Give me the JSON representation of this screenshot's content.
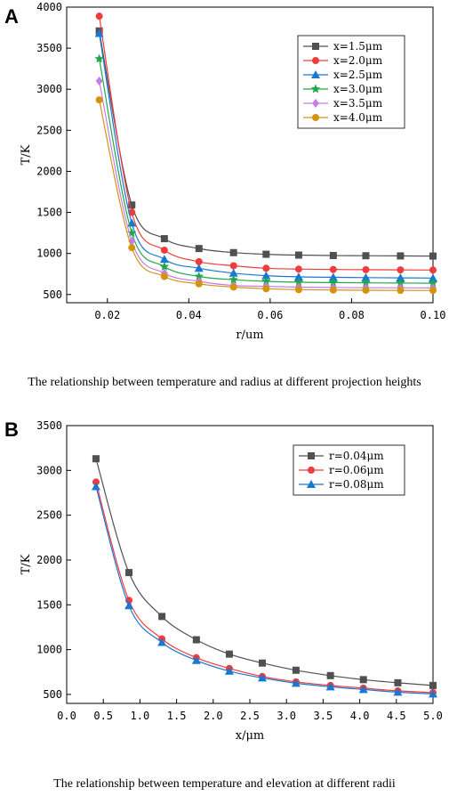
{
  "panels": [
    {
      "letter": "A",
      "caption": "The relationship between temperature and radius at different projection heights"
    },
    {
      "letter": "B",
      "caption": "The relationship between temperature and elevation at different radii"
    }
  ],
  "chart_data": [
    {
      "type": "line",
      "title": "",
      "xlabel": "r/um",
      "ylabel": "T/K",
      "xlim": [
        0.01,
        0.1
      ],
      "ylim": [
        400,
        4000
      ],
      "xticks": [
        0.02,
        0.04,
        0.06,
        0.08,
        0.1
      ],
      "xtick_labels": [
        "0.02",
        "0.04",
        "0.06",
        "0.08",
        "0.10"
      ],
      "yticks": [
        500,
        1000,
        1500,
        2000,
        2500,
        3000,
        3500,
        4000
      ],
      "ytick_labels": [
        "500",
        "1000",
        "1500",
        "2000",
        "2500",
        "3000",
        "3500",
        "4000"
      ],
      "x": [
        0.018,
        0.026,
        0.034,
        0.0425,
        0.051,
        0.059,
        0.067,
        0.0755,
        0.0835,
        0.092,
        0.1
      ],
      "grid": false,
      "legend": "top-right",
      "series": [
        {
          "name": "x=1.5μm",
          "color": "#505050",
          "marker": "square",
          "values": [
            3710,
            1590,
            1180,
            1060,
            1010,
            990,
            980,
            975,
            972,
            970,
            968
          ]
        },
        {
          "name": "x=2.0μm",
          "color": "#f03c3c",
          "marker": "circle",
          "values": [
            3890,
            1500,
            1040,
            900,
            850,
            820,
            810,
            805,
            802,
            800,
            798
          ]
        },
        {
          "name": "x=2.5μm",
          "color": "#1a78d2",
          "marker": "triangle",
          "values": [
            3680,
            1370,
            930,
            820,
            760,
            730,
            715,
            710,
            706,
            703,
            700
          ]
        },
        {
          "name": "x=3.0μm",
          "color": "#1fa84a",
          "marker": "star",
          "values": [
            3370,
            1250,
            840,
            720,
            680,
            660,
            650,
            645,
            642,
            640,
            638
          ]
        },
        {
          "name": "x=3.5μm",
          "color": "#c77ce6",
          "marker": "diamond",
          "values": [
            3100,
            1150,
            760,
            660,
            610,
            600,
            590,
            585,
            583,
            582,
            580
          ]
        },
        {
          "name": "x=4.0μm",
          "color": "#d4930c",
          "marker": "circle",
          "values": [
            2870,
            1070,
            720,
            630,
            590,
            570,
            560,
            555,
            552,
            550,
            550
          ]
        }
      ]
    },
    {
      "type": "line",
      "title": "",
      "xlabel": "x/μm",
      "ylabel": "T/K",
      "xlim": [
        0.0,
        5.0
      ],
      "ylim": [
        400,
        3500
      ],
      "xticks": [
        0.0,
        0.5,
        1.0,
        1.5,
        2.0,
        2.5,
        3.0,
        3.5,
        4.0,
        4.5,
        5.0
      ],
      "xtick_labels": [
        "0.0",
        "0.5",
        "1.0",
        "1.5",
        "2.0",
        "2.5",
        "3.0",
        "3.5",
        "4.0",
        "4.5",
        "5.0"
      ],
      "yticks": [
        500,
        1000,
        1500,
        2000,
        2500,
        3000,
        3500
      ],
      "ytick_labels": [
        "500",
        "1000",
        "1500",
        "2000",
        "2500",
        "3000",
        "3500"
      ],
      "x": [
        0.4,
        0.85,
        1.3,
        1.77,
        2.22,
        2.67,
        3.13,
        3.6,
        4.05,
        4.52,
        5.0
      ],
      "grid": false,
      "legend": "top-right",
      "series": [
        {
          "name": "r=0.04μm",
          "color": "#505050",
          "marker": "square",
          "values": [
            3130,
            1860,
            1370,
            1110,
            950,
            850,
            770,
            710,
            665,
            630,
            600
          ]
        },
        {
          "name": "r=0.06μm",
          "color": "#f03c3c",
          "marker": "circle",
          "values": [
            2870,
            1550,
            1120,
            910,
            790,
            700,
            640,
            600,
            570,
            540,
            520
          ]
        },
        {
          "name": "r=0.08μm",
          "color": "#1a78d2",
          "marker": "triangle",
          "values": [
            2820,
            1490,
            1080,
            880,
            760,
            685,
            625,
            585,
            555,
            525,
            505
          ]
        }
      ]
    }
  ]
}
